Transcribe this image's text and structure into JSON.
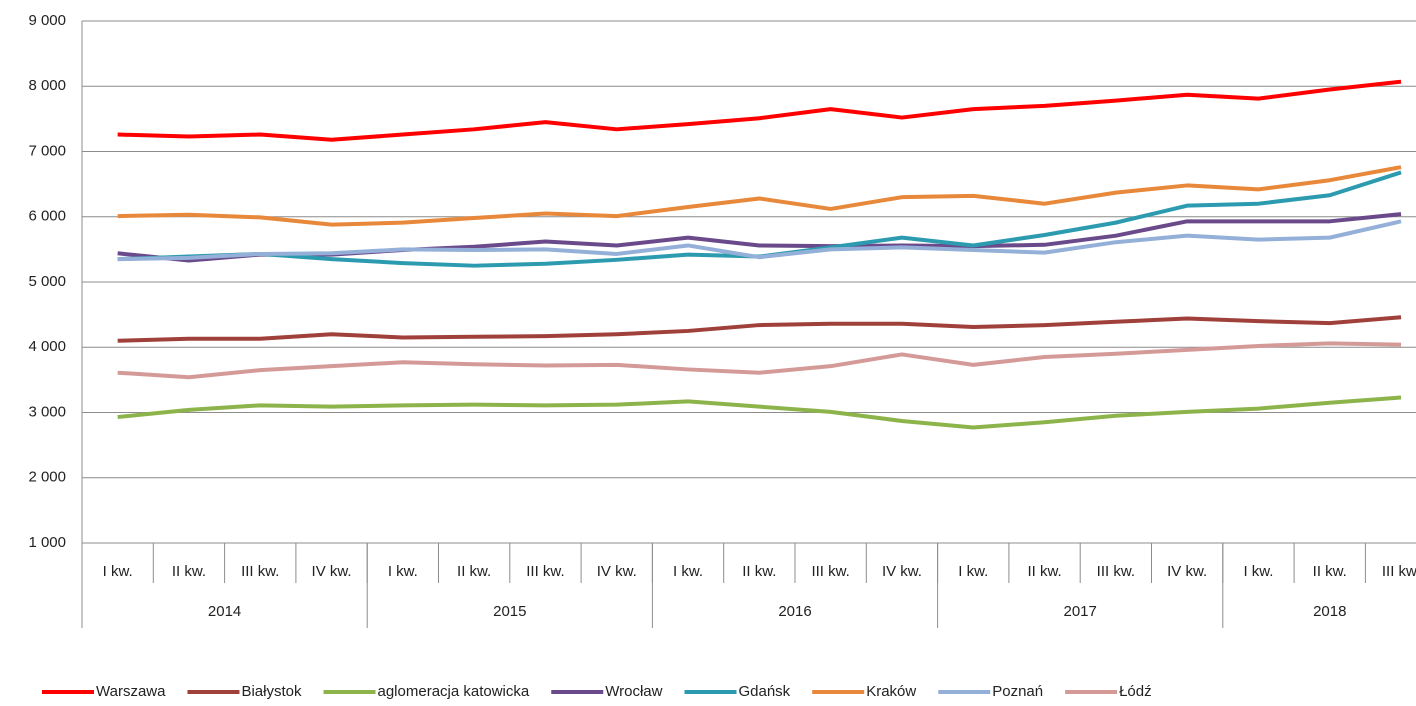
{
  "chart_data": {
    "type": "line",
    "categories": [
      "I kw.",
      "II kw.",
      "III kw.",
      "IV kw.",
      "I kw.",
      "II kw.",
      "III kw.",
      "IV kw.",
      "I kw.",
      "II kw.",
      "III kw.",
      "IV kw.",
      "I kw.",
      "II kw.",
      "III kw.",
      "IV kw.",
      "I kw.",
      "II kw.",
      "III kw."
    ],
    "x_groups": [
      {
        "label": "2014",
        "count": 4
      },
      {
        "label": "2015",
        "count": 4
      },
      {
        "label": "2016",
        "count": 4
      },
      {
        "label": "2017",
        "count": 4
      },
      {
        "label": "2018",
        "count": 3
      }
    ],
    "ylim": [
      1000,
      9000
    ],
    "yticks": [
      {
        "value": 1000,
        "label": "1 000"
      },
      {
        "value": 2000,
        "label": "2 000"
      },
      {
        "value": 3000,
        "label": "3 000"
      },
      {
        "value": 4000,
        "label": "4 000"
      },
      {
        "value": 5000,
        "label": "5 000"
      },
      {
        "value": 6000,
        "label": "6 000"
      },
      {
        "value": 7000,
        "label": "7 000"
      },
      {
        "value": 8000,
        "label": "8 000"
      },
      {
        "value": 9000,
        "label": "9 000"
      }
    ],
    "grid": true,
    "legend": "bottom",
    "series": [
      {
        "name": "Warszawa",
        "color": "#ff0000",
        "values": [
          7260,
          7230,
          7260,
          7180,
          7260,
          7340,
          7450,
          7340,
          7420,
          7510,
          7650,
          7520,
          7650,
          7700,
          7780,
          7870,
          7810,
          7950,
          8070
        ]
      },
      {
        "name": "Białystok",
        "color": "#a0403a",
        "values": [
          4100,
          4130,
          4130,
          4200,
          4150,
          4160,
          4170,
          4200,
          4250,
          4340,
          4360,
          4360,
          4310,
          4340,
          4390,
          4440,
          4400,
          4370,
          4460
        ]
      },
      {
        "name": "aglomeracja katowicka",
        "color": "#8cb44a",
        "values": [
          2930,
          3040,
          3110,
          3090,
          3110,
          3120,
          3110,
          3120,
          3170,
          3090,
          3010,
          2870,
          2770,
          2850,
          2950,
          3010,
          3060,
          3150,
          3230
        ]
      },
      {
        "name": "Wrocław",
        "color": "#6a4a8a",
        "values": [
          5440,
          5330,
          5420,
          5420,
          5490,
          5540,
          5620,
          5560,
          5680,
          5560,
          5550,
          5560,
          5550,
          5570,
          5710,
          5930,
          5930,
          5930,
          6040
        ]
      },
      {
        "name": "Gdańsk",
        "color": "#2c9bb0",
        "values": [
          5350,
          5390,
          5430,
          5350,
          5290,
          5250,
          5280,
          5340,
          5420,
          5390,
          5530,
          5680,
          5560,
          5720,
          5910,
          6170,
          6200,
          6330,
          6680
        ]
      },
      {
        "name": "Kraków",
        "color": "#e8883a",
        "values": [
          6010,
          6030,
          5990,
          5880,
          5910,
          5980,
          6050,
          6010,
          6150,
          6280,
          6120,
          6300,
          6320,
          6200,
          6370,
          6480,
          6420,
          6560,
          6760
        ]
      },
      {
        "name": "Poznań",
        "color": "#94b0d8",
        "values": [
          5350,
          5370,
          5430,
          5440,
          5500,
          5490,
          5500,
          5430,
          5560,
          5380,
          5500,
          5530,
          5490,
          5450,
          5610,
          5710,
          5650,
          5680,
          5930
        ]
      },
      {
        "name": "Łódź",
        "color": "#d49a98",
        "values": [
          3610,
          3540,
          3650,
          3710,
          3770,
          3740,
          3720,
          3730,
          3660,
          3610,
          3710,
          3890,
          3730,
          3850,
          3900,
          3960,
          4020,
          4060,
          4040
        ]
      }
    ]
  }
}
